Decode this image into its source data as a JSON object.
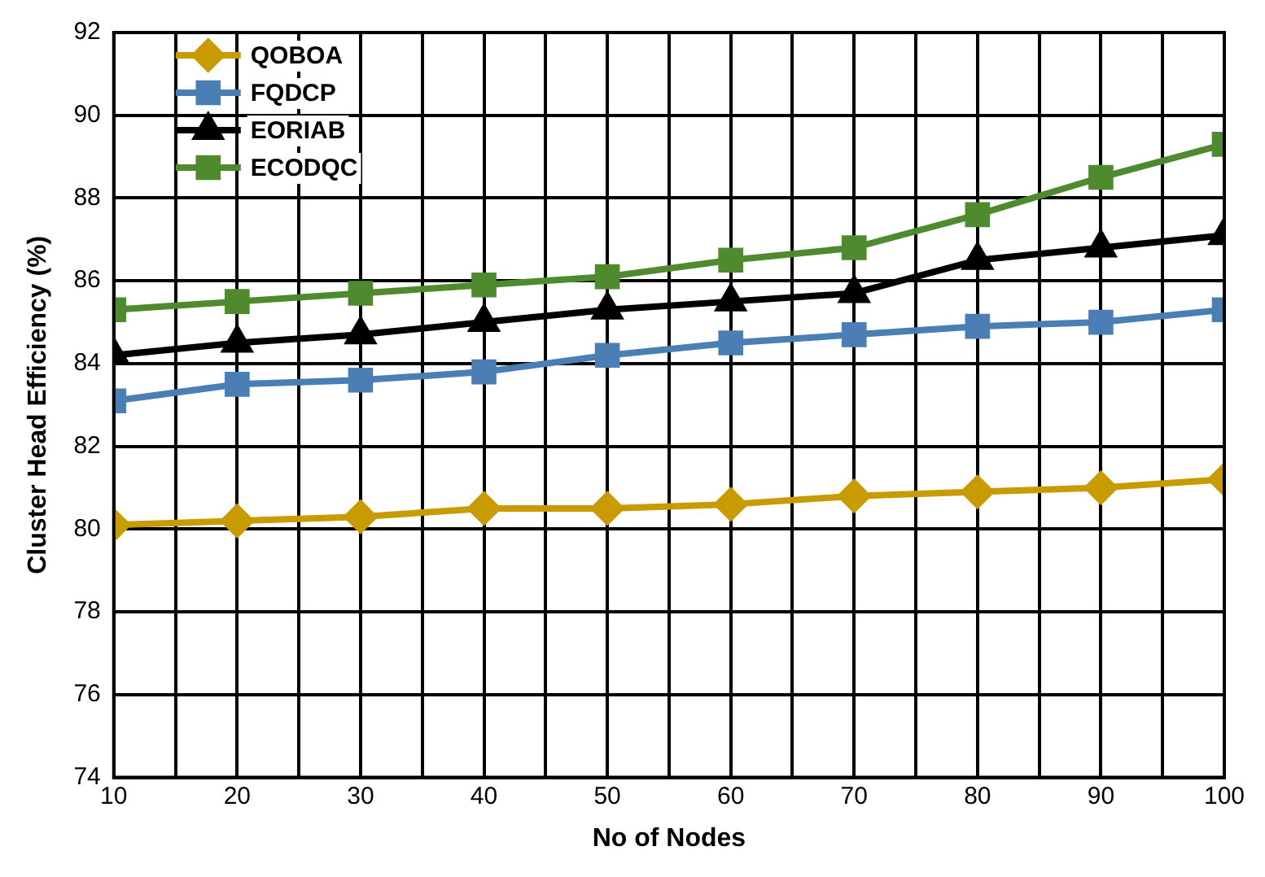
{
  "chart_data": {
    "type": "line",
    "xlabel": "No of Nodes",
    "ylabel": "Cluster Head Efficiency (%)",
    "x": [
      10,
      20,
      30,
      40,
      50,
      60,
      70,
      80,
      90,
      100
    ],
    "xlim": [
      10,
      100
    ],
    "xticks": [
      10,
      {
        "value": 15,
        "label": null
      },
      20,
      {
        "value": 25,
        "label": null
      },
      30,
      {
        "value": 35,
        "label": null
      },
      40,
      {
        "value": 45,
        "label": null
      },
      50,
      {
        "value": 55,
        "label": null
      },
      60,
      {
        "value": 65,
        "label": null
      },
      70,
      {
        "value": 75,
        "label": null
      },
      80,
      {
        "value": 85,
        "label": null
      },
      90,
      {
        "value": 95,
        "label": null
      },
      100
    ],
    "ylim": [
      74,
      92
    ],
    "yticks": [
      74,
      76,
      78,
      80,
      82,
      84,
      86,
      88,
      90,
      92
    ],
    "grid": true,
    "legend": "top left",
    "line_style": "solid",
    "series": [
      {
        "name": "QOBOA",
        "color": "#c89b00",
        "marker": "diamond",
        "values": [
          80.1,
          80.2,
          80.3,
          80.5,
          80.5,
          80.6,
          80.8,
          80.9,
          81.0,
          81.2
        ]
      },
      {
        "name": "FQDCP",
        "color": "#4a7eb4",
        "marker": "square",
        "values": [
          83.1,
          83.5,
          83.6,
          83.8,
          84.2,
          84.5,
          84.7,
          84.9,
          85.0,
          85.3
        ]
      },
      {
        "name": "EORIAB",
        "color": "#000000",
        "marker": "triangle",
        "values": [
          84.2,
          84.5,
          84.7,
          85.0,
          85.3,
          85.5,
          85.7,
          86.5,
          86.8,
          87.1
        ]
      },
      {
        "name": "ECODQC",
        "color": "#4f8a2e",
        "marker": "square",
        "values": [
          85.3,
          85.5,
          85.7,
          85.9,
          86.1,
          86.5,
          86.8,
          87.6,
          88.5,
          89.3
        ]
      }
    ]
  }
}
